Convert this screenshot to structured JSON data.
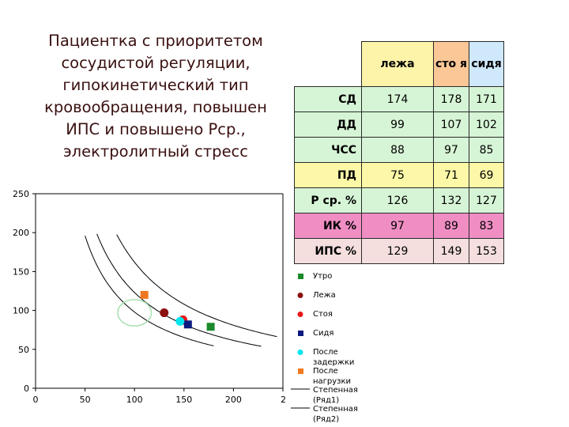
{
  "title_lines": [
    "Пациентка с приоритетом",
    "сосудистой регуляции,",
    "гипокинетический тип",
    "кровообращения, повышен",
    "ИПС и повышено Рср.,",
    "электролитный стресс"
  ],
  "table": {
    "columns": [
      "лежа",
      "сто я",
      "сидя"
    ],
    "header_colors": [
      "#fdf3a9",
      "#fbc796",
      "#cfe8fb"
    ],
    "rows": [
      {
        "label": "СД",
        "values": [
          "174",
          "178",
          "171"
        ],
        "color": "#d6f5d6"
      },
      {
        "label": "ДД",
        "values": [
          "99",
          "107",
          "102"
        ],
        "color": "#d6f5d6"
      },
      {
        "label": "ЧСС",
        "values": [
          "88",
          "97",
          "85"
        ],
        "color": "#d6f5d6"
      },
      {
        "label": "ПД",
        "values": [
          "75",
          "71",
          "69"
        ],
        "color": "#fdf8a8"
      },
      {
        "label": "Р ср. %",
        "values": [
          "126",
          "132",
          "127"
        ],
        "color": "#d6f5d6"
      },
      {
        "label": "ИК %",
        "values": [
          "97",
          "89",
          "83"
        ],
        "color": "#f08ec4"
      },
      {
        "label": "ИПС %",
        "values": [
          "129",
          "149",
          "153"
        ],
        "color": "#f4dede"
      }
    ]
  },
  "chart_data": {
    "type": "scatter",
    "xlim": [
      0,
      250
    ],
    "ylim": [
      0,
      250
    ],
    "x_ticks": [
      "0",
      "50",
      "100",
      "150",
      "200",
      "2"
    ],
    "y_ticks": [
      "0",
      "50",
      "100",
      "150",
      "200",
      "250"
    ],
    "series": [
      {
        "name": "Утро",
        "marker": "square",
        "color": "#1a8a2a",
        "points": [
          [
            177,
            79
          ]
        ]
      },
      {
        "name": "Лежа",
        "marker": "circle",
        "color": "#8b1010",
        "points": [
          [
            130,
            97
          ]
        ]
      },
      {
        "name": "Стоя",
        "marker": "circle",
        "color": "#e81818",
        "points": [
          [
            149,
            88
          ]
        ]
      },
      {
        "name": "Сидя",
        "marker": "square",
        "color": "#0a1a80",
        "points": [
          [
            154,
            82
          ]
        ]
      },
      {
        "name": "После задержки",
        "marker": "circle",
        "color": "#00e5ee",
        "points": [
          [
            146,
            86
          ]
        ]
      },
      {
        "name": "После нагрузки",
        "marker": "square",
        "color": "#f07820",
        "points": [
          [
            110,
            120
          ]
        ]
      }
    ],
    "curves": [
      {
        "name": "Степенная (Ряд1)",
        "k": 9800
      },
      {
        "name": "Степенная (Ряд2)",
        "k": 12300
      },
      {
        "name": "",
        "k": 16200
      }
    ],
    "ellipse": {
      "cx": 100,
      "cy": 97,
      "rx": 17,
      "ry": 17,
      "color": "#a8e0b0"
    },
    "legend_position": "right"
  }
}
